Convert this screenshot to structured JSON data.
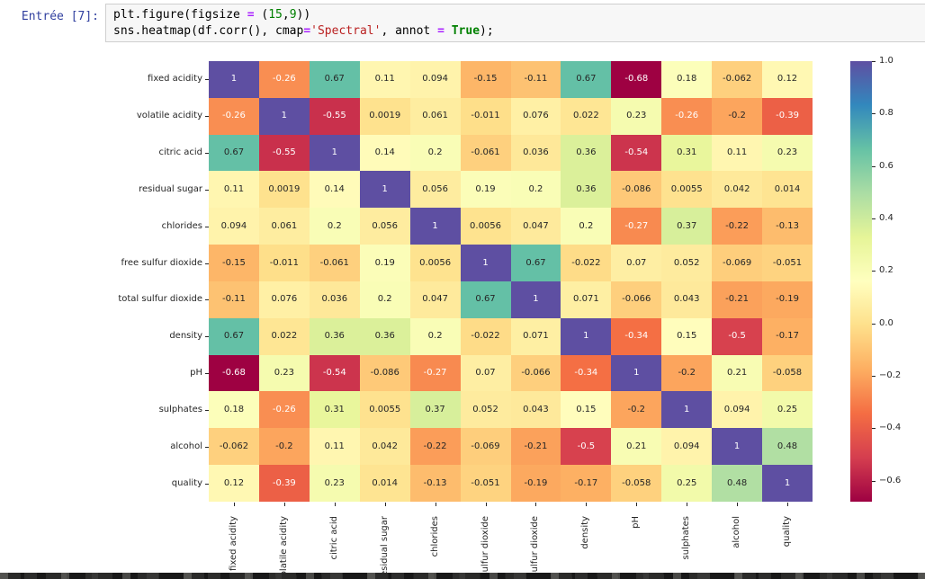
{
  "notebook": {
    "prompt_label": "Entrée [7]:",
    "code_lines": [
      [
        {
          "text": "plt.figure(figsize ",
          "type": "plain"
        },
        {
          "text": "=",
          "type": "operator"
        },
        {
          "text": " (",
          "type": "plain"
        },
        {
          "text": "15",
          "type": "number"
        },
        {
          "text": ",",
          "type": "plain"
        },
        {
          "text": "9",
          "type": "number"
        },
        {
          "text": "))",
          "type": "plain"
        }
      ],
      [
        {
          "text": "sns.heatmap(df.corr(), cmap",
          "type": "plain"
        },
        {
          "text": "=",
          "type": "operator"
        },
        {
          "text": "'Spectral'",
          "type": "string"
        },
        {
          "text": ", annot ",
          "type": "plain"
        },
        {
          "text": "=",
          "type": "operator"
        },
        {
          "text": " ",
          "type": "plain"
        },
        {
          "text": "True",
          "type": "keyword"
        },
        {
          "text": ");",
          "type": "plain"
        }
      ]
    ],
    "syntax_colors": {
      "plain": "#000000",
      "operator": "#AA22FF",
      "number": "#008000",
      "string": "#BA2121",
      "keyword": "#008000",
      "prompt": "#303F9F",
      "cell_background": "#f7f7f7",
      "cell_border": "#cfcfcf"
    }
  },
  "chart_data": {
    "type": "heatmap",
    "title": "",
    "cmap": "Spectral",
    "vmin": -0.68,
    "vmax": 1.0,
    "annotations_on": true,
    "labels": [
      "fixed acidity",
      "volatile acidity",
      "citric acid",
      "residual sugar",
      "chlorides",
      "free sulfur dioxide",
      "total sulfur dioxide",
      "density",
      "pH",
      "sulphates",
      "alcohol",
      "quality"
    ],
    "matrix": [
      [
        1,
        -0.26,
        0.67,
        0.11,
        0.094,
        -0.15,
        -0.11,
        0.67,
        -0.68,
        0.18,
        -0.062,
        0.12
      ],
      [
        -0.26,
        1,
        -0.55,
        0.0019,
        0.061,
        -0.011,
        0.076,
        0.022,
        0.23,
        -0.26,
        -0.2,
        -0.39
      ],
      [
        0.67,
        -0.55,
        1,
        0.14,
        0.2,
        -0.061,
        0.036,
        0.36,
        -0.54,
        0.31,
        0.11,
        0.23
      ],
      [
        0.11,
        0.0019,
        0.14,
        1,
        0.056,
        0.19,
        0.2,
        0.36,
        -0.086,
        0.0055,
        0.042,
        0.014
      ],
      [
        0.094,
        0.061,
        0.2,
        0.056,
        1,
        0.0056,
        0.047,
        0.2,
        -0.27,
        0.37,
        -0.22,
        -0.13
      ],
      [
        -0.15,
        -0.011,
        -0.061,
        0.19,
        0.0056,
        1,
        0.67,
        -0.022,
        0.07,
        0.052,
        -0.069,
        -0.051
      ],
      [
        -0.11,
        0.076,
        0.036,
        0.2,
        0.047,
        0.67,
        1,
        0.071,
        -0.066,
        0.043,
        -0.21,
        -0.19
      ],
      [
        0.67,
        0.022,
        0.36,
        0.36,
        0.2,
        -0.022,
        0.071,
        1,
        -0.34,
        0.15,
        -0.5,
        -0.17
      ],
      [
        -0.68,
        0.23,
        -0.54,
        -0.086,
        -0.27,
        0.07,
        -0.066,
        -0.34,
        1,
        -0.2,
        0.21,
        -0.058
      ],
      [
        0.18,
        -0.26,
        0.31,
        0.0055,
        0.37,
        0.052,
        0.043,
        0.15,
        -0.2,
        1,
        0.094,
        0.25
      ],
      [
        -0.062,
        -0.2,
        0.11,
        0.042,
        -0.22,
        -0.069,
        -0.21,
        -0.5,
        0.21,
        0.094,
        1,
        0.48
      ],
      [
        0.12,
        -0.39,
        0.23,
        0.014,
        -0.13,
        -0.051,
        -0.19,
        -0.17,
        -0.058,
        0.25,
        0.48,
        1
      ]
    ],
    "colorbar": {
      "position": "right",
      "tick_labels": [
        "1.0",
        "0.8",
        "0.6",
        "0.4",
        "0.2",
        "0.0",
        "−0.2",
        "−0.4",
        "−0.6"
      ],
      "tick_values": [
        1.0,
        0.8,
        0.6,
        0.4,
        0.2,
        0.0,
        -0.2,
        -0.4,
        -0.6
      ]
    },
    "spectral_stops": [
      "#9e0142",
      "#d53e4f",
      "#f46d43",
      "#fdae61",
      "#fee08b",
      "#ffffbf",
      "#e6f598",
      "#abdda4",
      "#66c2a5",
      "#3288bd",
      "#5e4fa2"
    ],
    "annotation_text_colors": {
      "dark": "#262626",
      "light": "#ffffff"
    }
  }
}
